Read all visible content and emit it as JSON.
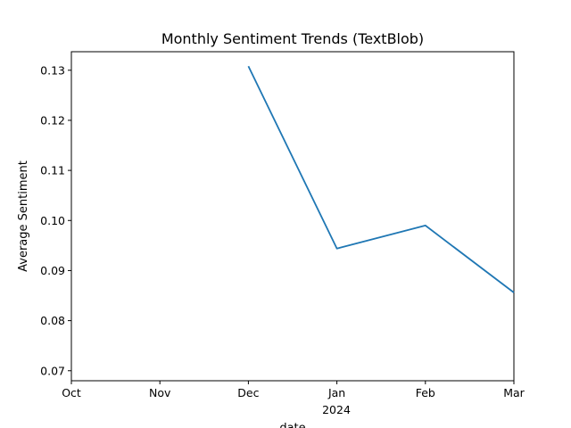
{
  "chart_data": {
    "type": "line",
    "title": "Monthly Sentiment Trends (TextBlob)",
    "xlabel": "date",
    "ylabel": "Average Sentiment",
    "x_ticks": [
      "Oct",
      "Nov",
      "Dec",
      "Jan",
      "Feb",
      "Mar"
    ],
    "x_year_label": "2024",
    "y_ticks": [
      "0.07",
      "0.08",
      "0.09",
      "0.10",
      "0.11",
      "0.12",
      "0.13"
    ],
    "ylim": [
      0.068,
      0.1337
    ],
    "x": [
      "Dec",
      "Jan",
      "Feb",
      "Mar"
    ],
    "series": [
      {
        "values": [
          0.1308,
          0.0944,
          0.099,
          0.0856
        ],
        "color": "#1f77b4"
      }
    ],
    "grid": false
  }
}
